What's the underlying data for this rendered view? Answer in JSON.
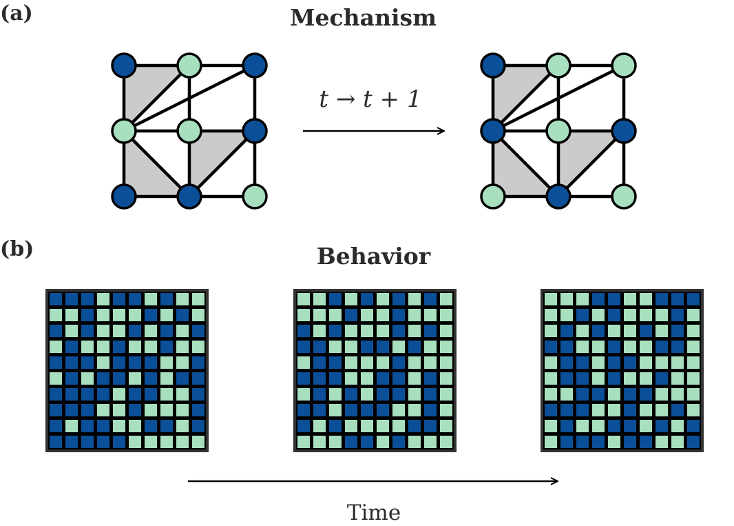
{
  "panel_a": {
    "label": "(a)",
    "title": "Mechanism",
    "transition_label": "t → t + 1",
    "colors": {
      "active": "#0b4f98",
      "inactive": "#a8dfbe",
      "simplex": "#cbcbcb",
      "edge": "#000000"
    },
    "states": {
      "before": [
        "active",
        "inactive",
        "active",
        "inactive",
        "inactive",
        "active",
        "active",
        "active",
        "inactive"
      ],
      "after": [
        "active",
        "inactive",
        "inactive",
        "active",
        "inactive",
        "active",
        "inactive",
        "active",
        "inactive"
      ]
    }
  },
  "panel_b": {
    "label": "(b)",
    "title": "Behavior",
    "time_label": "Time",
    "colors": {
      "active": "#0b4f98",
      "inactive": "#a8dfbe",
      "frame": "#333333",
      "background": "#000000"
    },
    "grids": [
      [
        "BBBGBBGBGG",
        "GGBGGGBGBG",
        "BGBGGBGBGB",
        "GBGGBGGBGG",
        "BBBGBBBGGB",
        "GBGBBGBGBB",
        "BBBBGBBGGB",
        "BBBGGBGGGB",
        "BGBBGGBBGB",
        "BBBBBGGGGG"
      ],
      [
        "GGBGBGBGBG",
        "GGGBGGBGGG",
        "BGBGGGBGBG",
        "BBGGBBGBGG",
        "GBBGGGBGGG",
        "BBBGGBBGBG",
        "GBGBGBBGBG",
        "BBGBBBGGBG",
        "BGBGGGGBBG",
        "GGGBBGBGGG"
      ],
      [
        "GGGBBGGBBB",
        "GGBGBGGGBG",
        "GBGBGGBGBG",
        "BBGGBGGBBG",
        "GBBGBBGGGG",
        "GBBGBGGBGG",
        "GGBBGBBGGG",
        "BBBGGBGGBG",
        "GBGGBBGBGB",
        "GBBBGBBGGB"
      ]
    ]
  }
}
